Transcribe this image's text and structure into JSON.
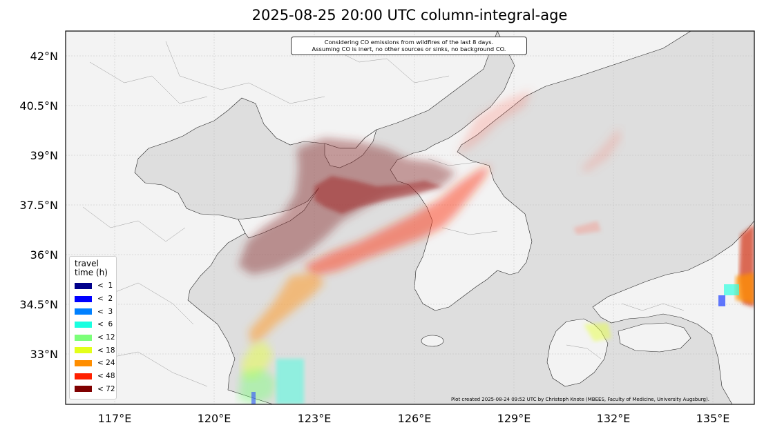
{
  "title": "2025-08-25 20:00 UTC column-integral-age",
  "note_lines": [
    "Considering CO emissions from wildfires of the last 8 days.",
    "Assuming CO is inert, no other sources or sinks, no background CO."
  ],
  "lat_ticks": [
    "42°N",
    "40.5°N",
    "39°N",
    "37.5°N",
    "36°N",
    "34.5°N",
    "33°N"
  ],
  "lon_ticks": [
    "117°E",
    "120°E",
    "123°E",
    "126°E",
    "129°E",
    "132°E",
    "135°E"
  ],
  "legend": {
    "title": "travel\ntime (h)",
    "items": [
      {
        "label": "<  1",
        "color": "#00008a"
      },
      {
        "label": "<  2",
        "color": "#0000ff"
      },
      {
        "label": "<  3",
        "color": "#0080ff"
      },
      {
        "label": "<  6",
        "color": "#19ffe0"
      },
      {
        "label": "< 12",
        "color": "#7cff79"
      },
      {
        "label": "< 18",
        "color": "#e3ff1a"
      },
      {
        "label": "< 24",
        "color": "#ff8e00"
      },
      {
        "label": "< 48",
        "color": "#ff2000"
      },
      {
        "label": "< 72",
        "color": "#7f0000"
      }
    ]
  },
  "credit": "Plot created 2025-08-24 09:52 UTC by Christoph Knote (MBEES, Faculty of Medicine, University Augsburg).",
  "colors": {
    "land": "#f3f3f3",
    "sea": "#dedede",
    "frame": "#000000"
  }
}
